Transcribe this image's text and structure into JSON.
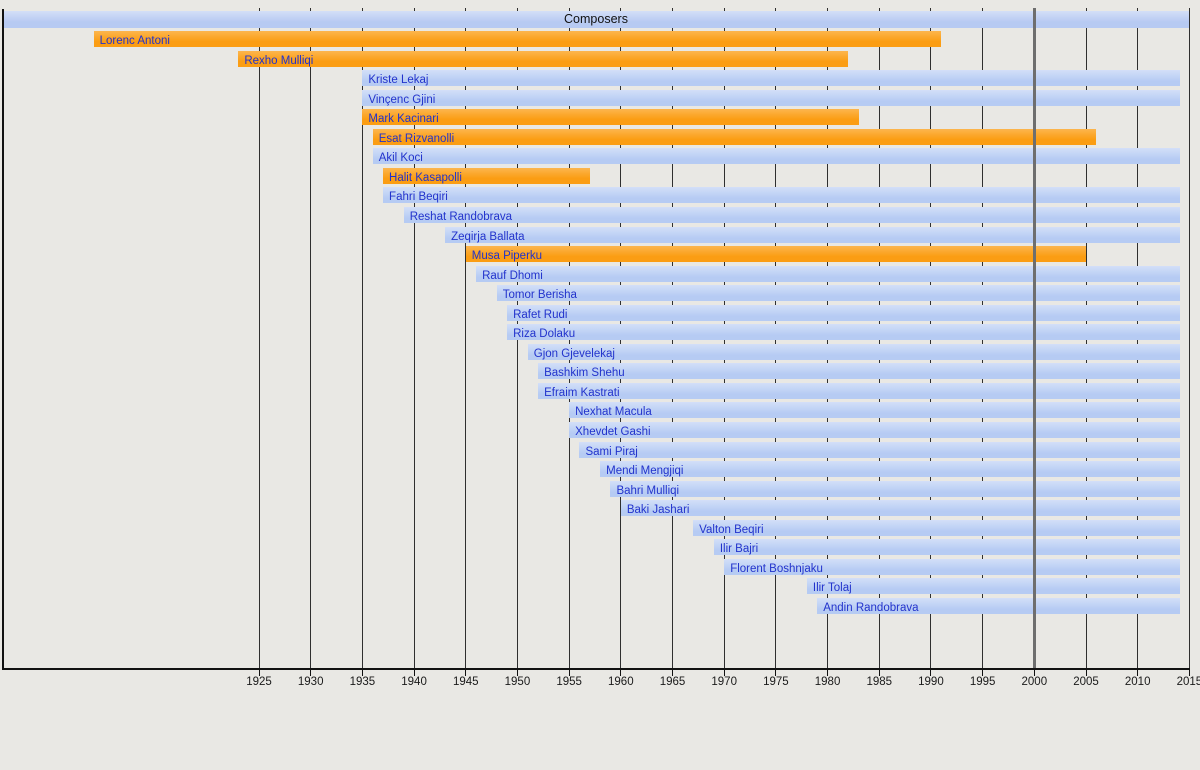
{
  "chart_data": {
    "type": "timeline",
    "title": "Composers",
    "axis": {
      "start": 1900,
      "end": 2015,
      "tick_interval": 5,
      "ticks": [
        1925,
        1930,
        1935,
        1940,
        1945,
        1950,
        1955,
        1960,
        1965,
        1970,
        1975,
        1980,
        1985,
        1990,
        1995,
        2000,
        2005,
        2010,
        2015
      ],
      "highlight_year": 2000
    },
    "present_end": 2014,
    "bar_color_semantics": {
      "orange": "deceased (birth–death span)",
      "blue": "living (birth–present span)"
    },
    "bars": [
      {
        "name": "Lorenc Antoni",
        "from": 1909,
        "till": 1991,
        "status": "deceased"
      },
      {
        "name": "Rexho Mulliqi",
        "from": 1923,
        "till": 1982,
        "status": "deceased"
      },
      {
        "name": "Kriste Lekaj",
        "from": 1935,
        "till": null,
        "status": "living"
      },
      {
        "name": "Vinçenc Gjini",
        "from": 1935,
        "till": null,
        "status": "living"
      },
      {
        "name": "Mark Kacinari",
        "from": 1935,
        "till": 1983,
        "status": "deceased"
      },
      {
        "name": "Esat Rizvanolli",
        "from": 1936,
        "till": 2006,
        "status": "deceased"
      },
      {
        "name": "Akil Koci",
        "from": 1936,
        "till": null,
        "status": "living"
      },
      {
        "name": "Halit Kasapolli",
        "from": 1937,
        "till": 1957,
        "status": "deceased"
      },
      {
        "name": "Fahri Beqiri",
        "from": 1937,
        "till": null,
        "status": "living"
      },
      {
        "name": "Reshat Randobrava",
        "from": 1939,
        "till": null,
        "status": "living"
      },
      {
        "name": "Zeqirja Ballata",
        "from": 1943,
        "till": null,
        "status": "living"
      },
      {
        "name": "Musa Piperku",
        "from": 1945,
        "till": 2005,
        "status": "deceased"
      },
      {
        "name": "Rauf Dhomi",
        "from": 1946,
        "till": null,
        "status": "living"
      },
      {
        "name": "Tomor Berisha",
        "from": 1948,
        "till": null,
        "status": "living"
      },
      {
        "name": "Rafet Rudi",
        "from": 1949,
        "till": null,
        "status": "living"
      },
      {
        "name": "Riza Dolaku",
        "from": 1949,
        "till": null,
        "status": "living"
      },
      {
        "name": "Gjon Gjevelekaj",
        "from": 1951,
        "till": null,
        "status": "living"
      },
      {
        "name": "Bashkim Shehu",
        "from": 1952,
        "till": null,
        "status": "living"
      },
      {
        "name": "Efraim Kastrati",
        "from": 1952,
        "till": null,
        "status": "living"
      },
      {
        "name": "Nexhat Macula",
        "from": 1955,
        "till": null,
        "status": "living"
      },
      {
        "name": "Xhevdet Gashi",
        "from": 1955,
        "till": null,
        "status": "living"
      },
      {
        "name": "Sami Piraj",
        "from": 1956,
        "till": null,
        "status": "living"
      },
      {
        "name": "Mendi Mengjiqi",
        "from": 1958,
        "till": null,
        "status": "living"
      },
      {
        "name": "Bahri Mulliqi",
        "from": 1959,
        "till": null,
        "status": "living"
      },
      {
        "name": "Baki Jashari",
        "from": 1960,
        "till": null,
        "status": "living"
      },
      {
        "name": "Valton Beqiri",
        "from": 1967,
        "till": null,
        "status": "living"
      },
      {
        "name": "Ilir Bajri",
        "from": 1969,
        "till": null,
        "status": "living"
      },
      {
        "name": "Florent Boshnjaku",
        "from": 1970,
        "till": null,
        "status": "living"
      },
      {
        "name": "Ilir Tolaj",
        "from": 1978,
        "till": null,
        "status": "living"
      },
      {
        "name": "Andin Randobrava",
        "from": 1979,
        "till": null,
        "status": "living"
      }
    ]
  },
  "colors": {
    "background": "#e9e8e4",
    "living_bar": "#b3c9f3",
    "deceased_bar": "#fb9d13",
    "title_bar": "#b6c9f2",
    "bar_label": "#2233cc",
    "grid_line": "#2f2f2f",
    "highlight_line": "#6e6e6e",
    "axis_text": "#1a1a1a"
  }
}
